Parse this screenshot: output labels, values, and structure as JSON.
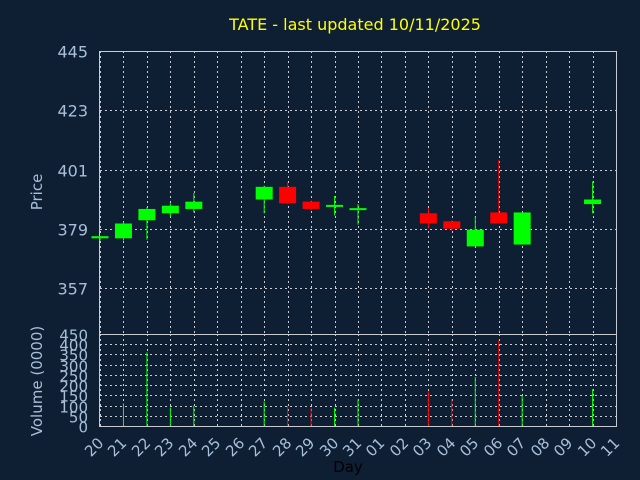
{
  "chart_data": {
    "type": "candlestick",
    "title": "TATE - last updated 10/11/2025",
    "xlabel": "Day",
    "ylabel_price": "Price",
    "ylabel_volume": "Volume (0000)",
    "price_ylim": [
      340,
      445
    ],
    "price_ticks": [
      445,
      423,
      401,
      379,
      357
    ],
    "volume_ylim": [
      0,
      450
    ],
    "volume_ticks": [
      450,
      400,
      350,
      300,
      250,
      200,
      150,
      100,
      50,
      0
    ],
    "x_tick_labels": [
      "20",
      "21",
      "22",
      "23",
      "24",
      "25",
      "26",
      "27",
      "28",
      "29",
      "30",
      "31",
      "01",
      "02",
      "03",
      "04",
      "05",
      "06",
      "07",
      "08",
      "09",
      "10",
      "11"
    ],
    "grid": true,
    "up_color": "#00ff00",
    "down_color": "#ff0000",
    "candles": [
      {
        "day": "20",
        "open": 375.5,
        "high": 376.3,
        "low": 374.7,
        "close": 376.3,
        "volume": 0
      },
      {
        "day": "21",
        "open": 375.5,
        "high": 381.5,
        "low": 374.7,
        "close": 381.0,
        "volume": 110
      },
      {
        "day": "22",
        "open": 382.2,
        "high": 387.0,
        "low": 375.0,
        "close": 386.4,
        "volume": 360
      },
      {
        "day": "23",
        "open": 384.8,
        "high": 388.5,
        "low": 383.6,
        "close": 387.6,
        "volume": 90
      },
      {
        "day": "24",
        "open": 386.4,
        "high": 392.3,
        "low": 385.1,
        "close": 389.1,
        "volume": 100
      },
      {
        "day": "27",
        "open": 389.9,
        "high": 395.0,
        "low": 384.8,
        "close": 394.6,
        "volume": 120
      },
      {
        "day": "28",
        "open": 394.6,
        "high": 396.2,
        "low": 388.2,
        "close": 388.5,
        "volume": 100
      },
      {
        "day": "29",
        "open": 389.1,
        "high": 389.5,
        "low": 385.8,
        "close": 386.4,
        "volume": 90
      },
      {
        "day": "30",
        "open": 387.6,
        "high": 391.2,
        "low": 384.0,
        "close": 387.9,
        "volume": 90
      },
      {
        "day": "31",
        "open": 386.4,
        "high": 388.2,
        "low": 380.6,
        "close": 386.7,
        "volume": 130
      },
      {
        "day": "03",
        "open": 384.8,
        "high": 386.7,
        "low": 379.1,
        "close": 381.0,
        "volume": 170
      },
      {
        "day": "04",
        "open": 381.8,
        "high": 382.2,
        "low": 378.3,
        "close": 379.1,
        "volume": 130
      },
      {
        "day": "05",
        "open": 372.5,
        "high": 383.6,
        "low": 372.5,
        "close": 378.7,
        "volume": 240
      },
      {
        "day": "06",
        "open": 385.1,
        "high": 404.5,
        "low": 381.0,
        "close": 381.0,
        "volume": 420
      },
      {
        "day": "07",
        "open": 373.2,
        "high": 385.1,
        "low": 373.2,
        "close": 385.1,
        "volume": 150
      },
      {
        "day": "10",
        "open": 388.2,
        "high": 396.6,
        "low": 384.8,
        "close": 389.9,
        "volume": 180
      }
    ]
  }
}
